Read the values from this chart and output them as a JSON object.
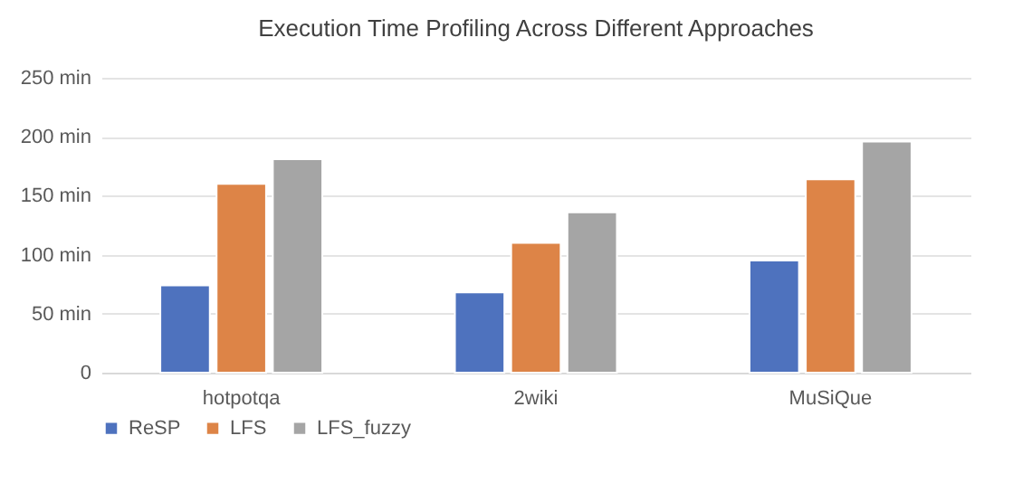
{
  "chart_data": {
    "type": "bar",
    "title": "Execution Time Profiling Across Different Approaches",
    "categories": [
      "hotpotqa",
      "2wiki",
      "MuSiQue"
    ],
    "series": [
      {
        "name": "ReSP",
        "color": "#4e72be",
        "values": [
          74,
          68,
          95
        ]
      },
      {
        "name": "LFS",
        "color": "#dd8447",
        "values": [
          160,
          110,
          164
        ]
      },
      {
        "name": "LFS_fuzzy",
        "color": "#a5a5a5",
        "values": [
          181,
          136,
          196
        ]
      }
    ],
    "ylim": [
      0,
      250
    ],
    "yticks": [
      0,
      {
        "value": 50,
        "label": "50 min"
      },
      {
        "value": 100,
        "label": "100 min"
      },
      {
        "value": 150,
        "label": "150 min"
      },
      {
        "value": 200,
        "label": "200 min"
      },
      {
        "value": 250,
        "label": "250 min"
      }
    ],
    "grid": "y",
    "legend": "bottom"
  }
}
